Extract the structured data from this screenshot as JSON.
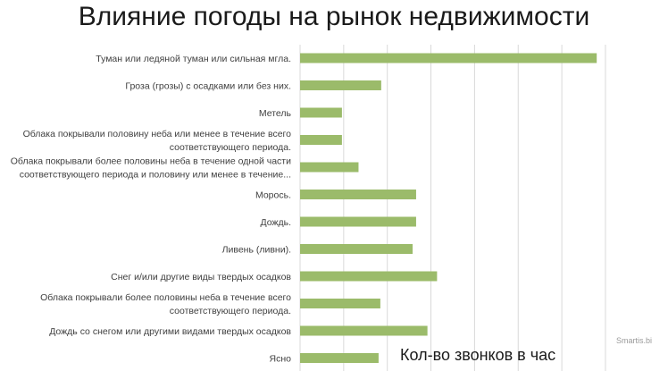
{
  "chart_data": {
    "type": "bar",
    "orientation": "horizontal",
    "title": "Влияние погоды на рынок недвижимости",
    "xlabel": "Кол-во звонков в час",
    "ylabel": "",
    "xlim": [
      0,
      38
    ],
    "grid": "vertical",
    "categories": [
      [
        "Туман или ледяной туман или сильная мгла."
      ],
      [
        "Гроза (грозы) с осадками или без них."
      ],
      [
        "Метель"
      ],
      [
        "Облака покрывали половину неба или менее в течение всего",
        "соответствующего периода."
      ],
      [
        "Облака покрывали более половины неба в течение одной части",
        "соответствующего периода и половину или менее в течение..."
      ],
      [
        "Морось."
      ],
      [
        "Дождь."
      ],
      [
        "Ливень (ливни)."
      ],
      [
        "Снег и/или другие виды твердых осадков"
      ],
      [
        "Облака покрывали более половины неба в течение всего",
        "соответствующего периода."
      ],
      [
        "Дождь со снегом или другими видами твердых осадков"
      ],
      [
        "Ясно"
      ]
    ],
    "values": [
      34.0,
      9.3,
      4.8,
      4.8,
      6.7,
      13.3,
      13.3,
      12.9,
      15.7,
      9.2,
      14.6,
      9.0
    ],
    "bar_color": "#9bbb6a",
    "grid_color": "#d9d9d9"
  },
  "watermark": "Smartis.bi"
}
